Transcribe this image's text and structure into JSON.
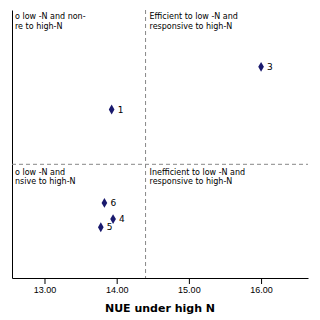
{
  "chart_data": {
    "type": "scatter",
    "xlabel": "NUE under high N",
    "x": [
      13.93,
      16.0,
      13.83,
      13.95,
      13.78
    ],
    "values": [
      0.635,
      0.74,
      0.405,
      0.365,
      0.345
    ],
    "labels": [
      "1",
      "3",
      "6",
      "4",
      "5"
    ],
    "color": "#1a1a6e",
    "marker": "diamond",
    "vline": 14.4,
    "hline": 0.5,
    "xlim": [
      12.55,
      16.65
    ],
    "ylim": [
      0.22,
      0.88
    ],
    "xticks": [
      {
        "value": 13.0,
        "label": "13.00"
      },
      {
        "value": 14.0,
        "label": "14.00"
      },
      {
        "value": 15.0,
        "label": "15.00"
      },
      {
        "value": 16.0,
        "label": "16.00"
      }
    ],
    "tick_labels": "x",
    "annotations": [
      "o low -N and non-\nre to high-N",
      "Efficient to low -N and\nresponsive to high-N",
      "o low -N and\nnsive to high-N",
      "Inefficient to low -N and\nresponsive to high-N"
    ]
  }
}
